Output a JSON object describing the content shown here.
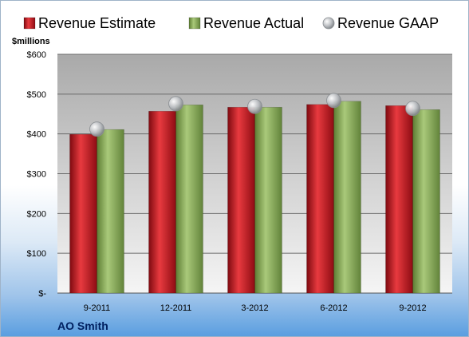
{
  "chart_data": {
    "type": "bar",
    "title": "",
    "xlabel": "",
    "ylabel": "$millions",
    "categories": [
      "9-2011",
      "12-2011",
      "3-2012",
      "6-2012",
      "9-2012"
    ],
    "series": [
      {
        "name": "Revenue Estimate",
        "kind": "bar",
        "color": "#c0121d",
        "values": [
          399,
          457,
          467,
          474,
          471
        ]
      },
      {
        "name": "Revenue Actual",
        "kind": "bar",
        "color": "#8aae55",
        "values": [
          411,
          473,
          467,
          482,
          461
        ]
      },
      {
        "name": "Revenue GAAP",
        "kind": "marker",
        "color": "#b4b8bd",
        "values": [
          412,
          476,
          469,
          484,
          464
        ]
      }
    ],
    "ylim": [
      0,
      600
    ],
    "yticks": [
      0,
      100,
      200,
      300,
      400,
      500,
      600
    ],
    "ytick_labels": [
      "$-",
      "$100",
      "$200",
      "$300",
      "$400",
      "$500",
      "$600"
    ],
    "grid": true,
    "legend": "top",
    "footer_label": "AO Smith",
    "plot_background": "#d9d9d9"
  }
}
